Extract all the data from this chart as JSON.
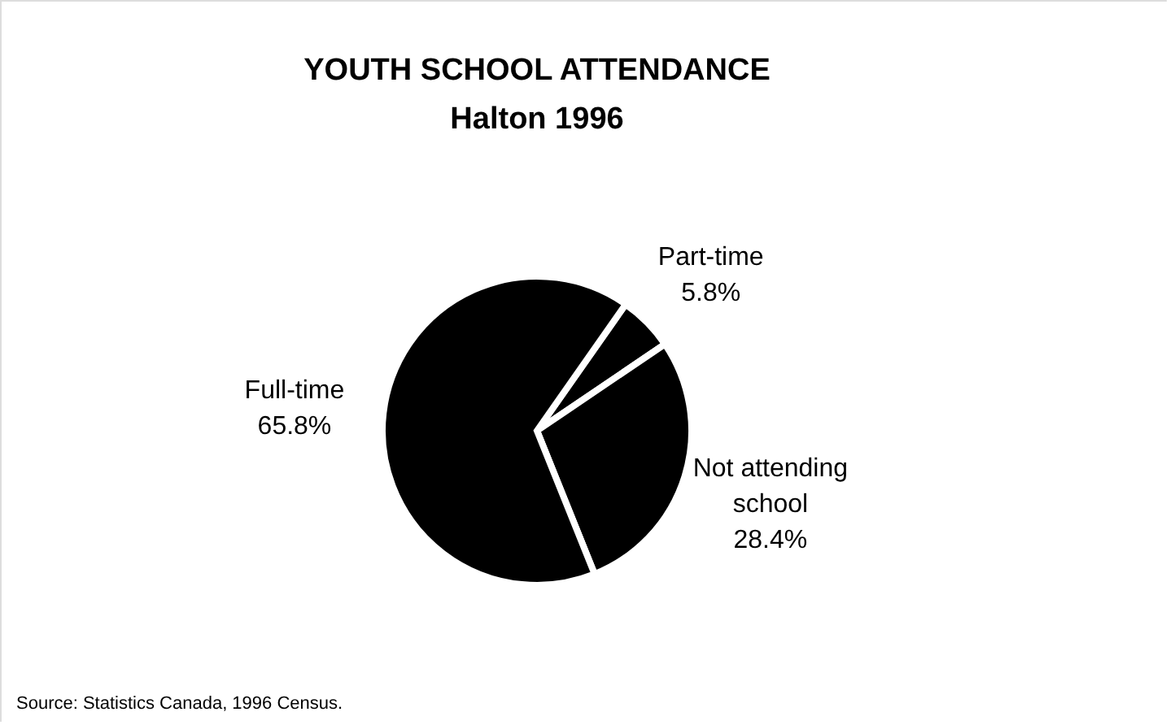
{
  "chart_data": {
    "type": "pie",
    "title": "YOUTH SCHOOL ATTENDANCE",
    "subtitle": "Halton 1996",
    "categories": [
      "Part-time",
      "Not attending school",
      "Full-time"
    ],
    "values": [
      5.8,
      28.4,
      65.8
    ],
    "value_labels": [
      "5.8%",
      "28.4%",
      "65.8%"
    ],
    "colors": [
      "#000000",
      "#000000",
      "#000000"
    ],
    "annotations": [
      "Source: Statistics Canada, 1996 Census."
    ],
    "legend": false
  }
}
